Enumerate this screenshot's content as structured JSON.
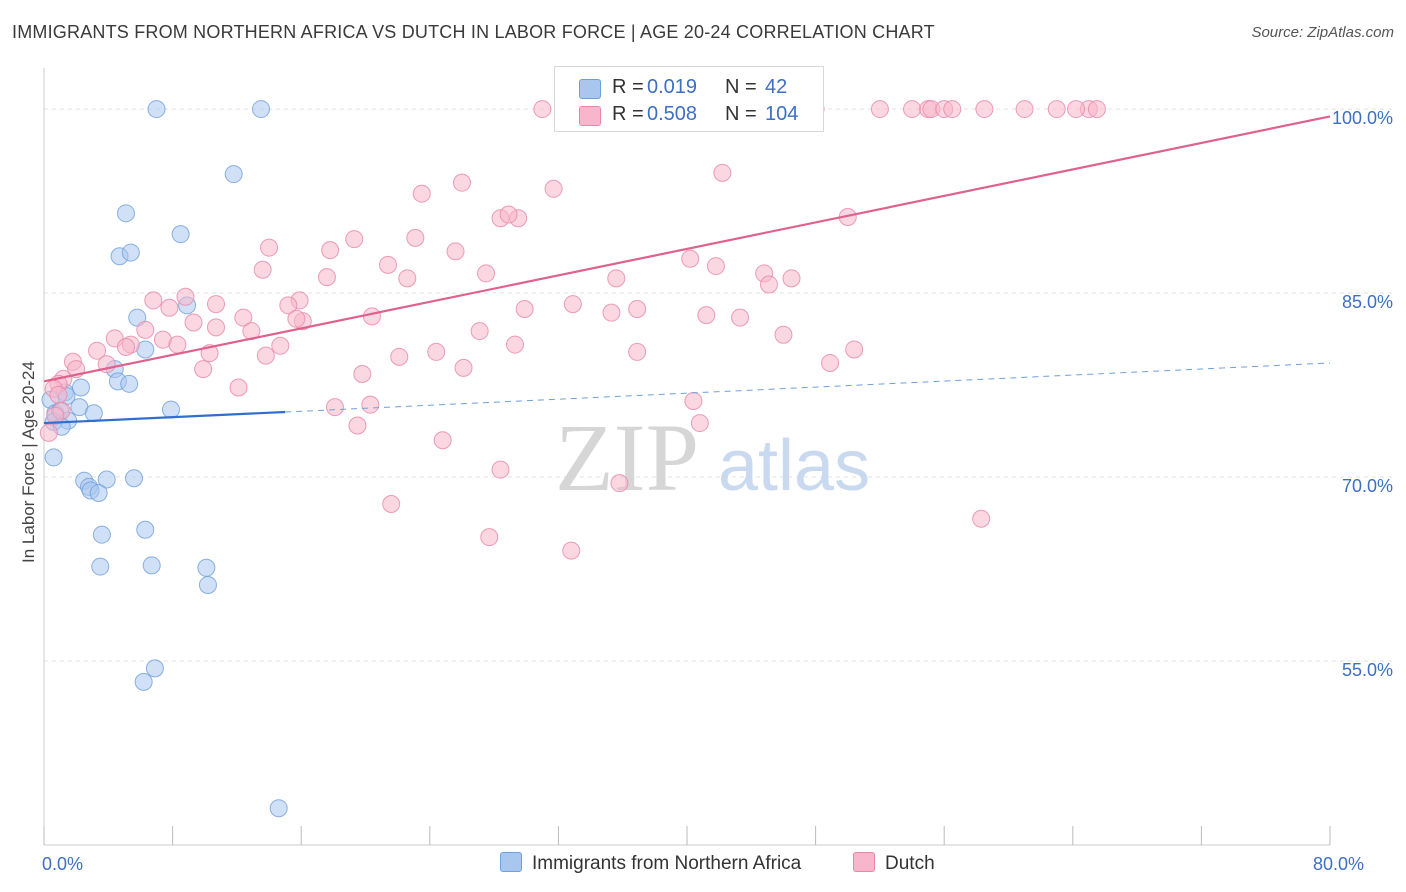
{
  "title": "IMMIGRANTS FROM NORTHERN AFRICA VS DUTCH IN LABOR FORCE | AGE 20-24 CORRELATION CHART",
  "source": "Source: ZipAtlas.com",
  "watermark": {
    "zip": "ZIP",
    "atlas": "atlas"
  },
  "legend": {
    "rows": [
      {
        "r_label": "R =",
        "r_value": "0.019",
        "n_label": "N =",
        "n_value": "42"
      },
      {
        "r_label": "R =",
        "r_value": "0.508",
        "n_label": "N =",
        "n_value": "104"
      }
    ]
  },
  "chart_data": {
    "type": "scatter",
    "xlabel": "",
    "ylabel": "In Labor Force | Age 20-24",
    "xlim": [
      0,
      80
    ],
    "ylim": [
      40,
      104
    ],
    "x_tick_labels": [
      {
        "value": 0,
        "label": "0.0%"
      },
      {
        "value": 80,
        "label": "80.0%"
      }
    ],
    "y_tick_labels": [
      {
        "value": 100,
        "label": "100.0%"
      },
      {
        "value": 85,
        "label": "85.0%"
      },
      {
        "value": 70,
        "label": "70.0%"
      },
      {
        "value": 55,
        "label": "55.0%"
      }
    ],
    "grid": true,
    "series": [
      {
        "name": "Immigrants from Northern Africa",
        "color": "#6f9fdc",
        "fill": "#a9c6ef",
        "trend": {
          "x": [
            0,
            15
          ],
          "y": [
            74.4,
            75.3
          ],
          "dashed_to": [
            80,
            79.3
          ]
        },
        "points": [
          [
            7,
            100
          ],
          [
            13.5,
            100
          ],
          [
            11.8,
            94.7
          ],
          [
            5.1,
            91.5
          ],
          [
            8.5,
            89.8
          ],
          [
            4.7,
            88.0
          ],
          [
            5.4,
            88.3
          ],
          [
            5.8,
            83.0
          ],
          [
            8.9,
            84.0
          ],
          [
            6.3,
            80.4
          ],
          [
            4.4,
            78.8
          ],
          [
            4.6,
            77.8
          ],
          [
            5.3,
            77.6
          ],
          [
            2.3,
            77.3
          ],
          [
            1.3,
            76.9
          ],
          [
            1.4,
            76.6
          ],
          [
            0.4,
            76.3
          ],
          [
            2.2,
            75.7
          ],
          [
            7.9,
            75.5
          ],
          [
            0.7,
            75.2
          ],
          [
            1.0,
            75.4
          ],
          [
            3.1,
            75.2
          ],
          [
            1.5,
            74.6
          ],
          [
            0.6,
            74.5
          ],
          [
            1.1,
            74.1
          ],
          [
            0.6,
            71.6
          ],
          [
            2.5,
            69.7
          ],
          [
            2.8,
            69.2
          ],
          [
            3.9,
            69.8
          ],
          [
            5.6,
            69.9
          ],
          [
            2.9,
            68.9
          ],
          [
            3.4,
            68.7
          ],
          [
            6.3,
            65.7
          ],
          [
            3.6,
            65.3
          ],
          [
            6.7,
            62.8
          ],
          [
            3.5,
            62.7
          ],
          [
            10.1,
            62.6
          ],
          [
            10.2,
            61.2
          ],
          [
            6.9,
            54.4
          ],
          [
            6.2,
            53.3
          ],
          [
            14.6,
            43.0
          ]
        ]
      },
      {
        "name": "Dutch",
        "color": "#e886a8",
        "fill": "#f7b6cb",
        "trend": {
          "x": [
            0,
            80
          ],
          "y": [
            77.8,
            99.4
          ]
        },
        "points": [
          [
            31,
            100
          ],
          [
            40.5,
            100
          ],
          [
            48,
            100
          ],
          [
            52,
            100
          ],
          [
            54,
            100
          ],
          [
            55,
            100
          ],
          [
            55.2,
            100
          ],
          [
            56,
            100
          ],
          [
            56.5,
            100
          ],
          [
            58.5,
            100
          ],
          [
            61,
            100
          ],
          [
            63,
            100
          ],
          [
            65,
            100
          ],
          [
            65.5,
            100
          ],
          [
            64.2,
            100
          ],
          [
            26,
            94.0
          ],
          [
            42.2,
            94.8
          ],
          [
            23.5,
            93.1
          ],
          [
            31.7,
            93.5
          ],
          [
            28.4,
            91.1
          ],
          [
            29.5,
            91.1
          ],
          [
            28.9,
            91.4
          ],
          [
            50,
            91.2
          ],
          [
            19.3,
            89.4
          ],
          [
            23.1,
            89.5
          ],
          [
            14,
            88.7
          ],
          [
            17.8,
            88.5
          ],
          [
            25.6,
            88.4
          ],
          [
            40.2,
            87.8
          ],
          [
            21.4,
            87.3
          ],
          [
            41.8,
            87.2
          ],
          [
            13.6,
            86.9
          ],
          [
            27.5,
            86.6
          ],
          [
            17.6,
            86.3
          ],
          [
            22.6,
            86.2
          ],
          [
            35.6,
            86.2
          ],
          [
            44.8,
            86.6
          ],
          [
            46.5,
            86.2
          ],
          [
            45.1,
            85.7
          ],
          [
            15.9,
            84.4
          ],
          [
            8.8,
            84.7
          ],
          [
            6.8,
            84.4
          ],
          [
            7.8,
            83.8
          ],
          [
            10.7,
            84.1
          ],
          [
            15.2,
            84.0
          ],
          [
            29.9,
            83.7
          ],
          [
            32.9,
            84.1
          ],
          [
            36.9,
            83.7
          ],
          [
            35.3,
            83.4
          ],
          [
            41.2,
            83.2
          ],
          [
            43.3,
            83.0
          ],
          [
            20.4,
            83.1
          ],
          [
            12.4,
            83.0
          ],
          [
            16.1,
            82.7
          ],
          [
            15.7,
            82.9
          ],
          [
            9.3,
            82.6
          ],
          [
            10.7,
            82.2
          ],
          [
            12.9,
            81.9
          ],
          [
            6.3,
            82.0
          ],
          [
            27.1,
            81.9
          ],
          [
            46,
            81.6
          ],
          [
            4.4,
            81.3
          ],
          [
            7.4,
            81.2
          ],
          [
            8.3,
            80.8
          ],
          [
            29.3,
            80.8
          ],
          [
            14.7,
            80.7
          ],
          [
            5.4,
            80.8
          ],
          [
            5.1,
            80.6
          ],
          [
            3.3,
            80.3
          ],
          [
            10.3,
            80.1
          ],
          [
            24.4,
            80.2
          ],
          [
            36.9,
            80.2
          ],
          [
            13.8,
            79.9
          ],
          [
            22.1,
            79.8
          ],
          [
            50.4,
            80.4
          ],
          [
            1.8,
            79.4
          ],
          [
            3.9,
            79.2
          ],
          [
            2.0,
            78.8
          ],
          [
            26.1,
            78.9
          ],
          [
            48.9,
            79.3
          ],
          [
            9.9,
            78.8
          ],
          [
            1.2,
            78.0
          ],
          [
            19.8,
            78.4
          ],
          [
            0.9,
            77.6
          ],
          [
            0.6,
            77.2
          ],
          [
            0.9,
            76.7
          ],
          [
            12.1,
            77.3
          ],
          [
            40.4,
            76.2
          ],
          [
            20.3,
            75.9
          ],
          [
            18.1,
            75.7
          ],
          [
            1.1,
            75.4
          ],
          [
            0.7,
            75.0
          ],
          [
            40.8,
            74.4
          ],
          [
            19.5,
            74.2
          ],
          [
            0.3,
            73.6
          ],
          [
            24.8,
            73.0
          ],
          [
            28.4,
            70.6
          ],
          [
            35.8,
            69.5
          ],
          [
            21.6,
            67.8
          ],
          [
            58.3,
            66.6
          ],
          [
            27.7,
            65.1
          ],
          [
            32.8,
            64.0
          ]
        ]
      }
    ]
  }
}
